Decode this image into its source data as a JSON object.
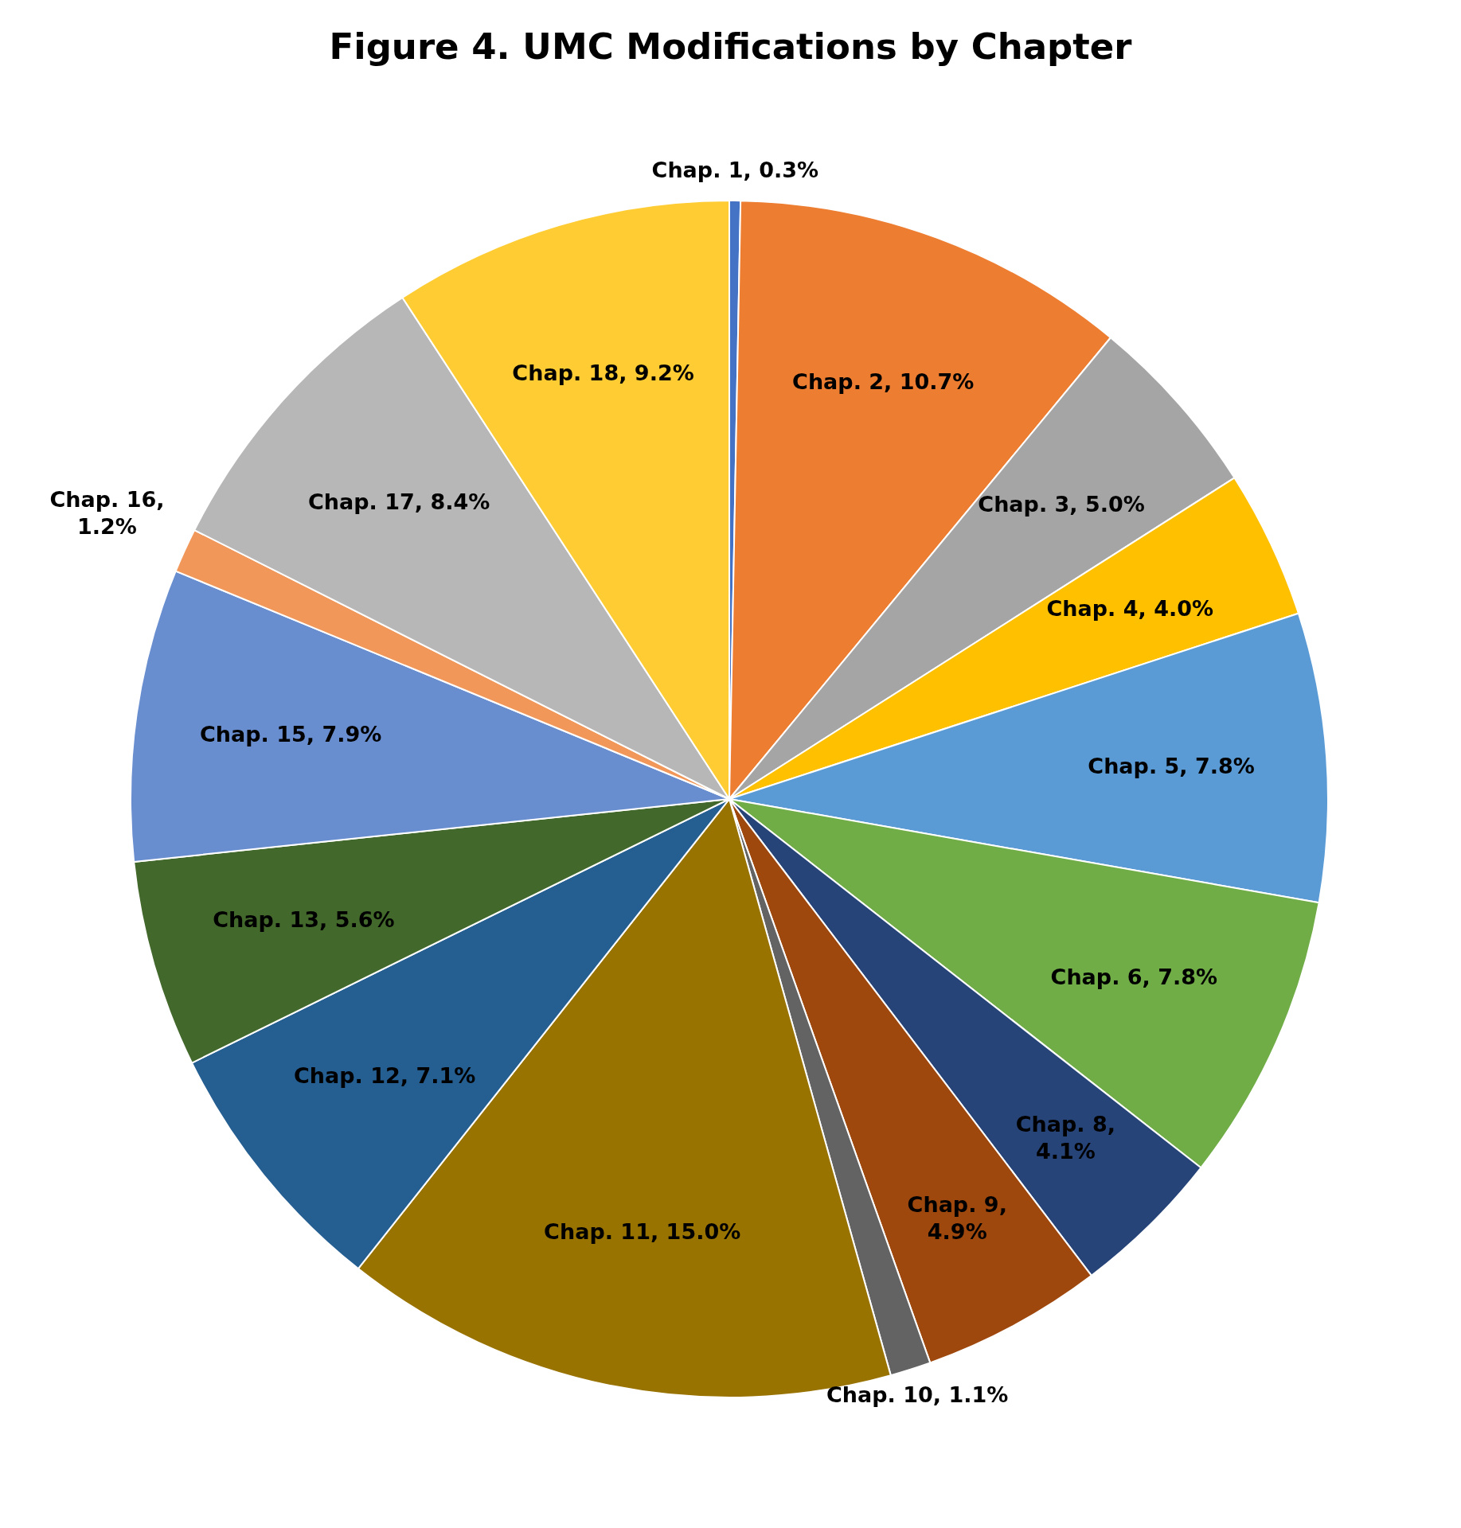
{
  "chart_data": {
    "type": "pie",
    "title": "Figure 4. UMC Modifications by Chapter",
    "categories": [
      "Chap. 1, 0.3%",
      "Chap. 2, 10.7%",
      "Chap. 3, 5.0%",
      "Chap. 4, 4.0%",
      "Chap. 5, 7.8%",
      "Chap. 6, 7.8%",
      "Chap. 8, 4.1%",
      "Chap. 9, 4.9%",
      "Chap. 10, 1.1%",
      "Chap. 11, 15.0%",
      "Chap. 12, 7.1%",
      "Chap. 13, 5.6%",
      "Chap. 15, 7.9%",
      "Chap. 16, 1.2%",
      "Chap. 17, 8.4%",
      "Chap. 18, 9.2%"
    ],
    "values": [
      0.3,
      10.7,
      5.0,
      4.0,
      7.8,
      7.8,
      4.1,
      4.9,
      1.1,
      15.0,
      7.1,
      5.6,
      7.9,
      1.2,
      8.4,
      9.2
    ],
    "colors": [
      "#4472c4",
      "#ed7d31",
      "#a5a5a5",
      "#ffc000",
      "#5b9bd5",
      "#70ad47",
      "#264478",
      "#9e480e",
      "#636363",
      "#997300",
      "#255e91",
      "#43682b",
      "#698ed0",
      "#f1975a",
      "#b7b7b7",
      "#ffcd33"
    ],
    "legend": false
  }
}
